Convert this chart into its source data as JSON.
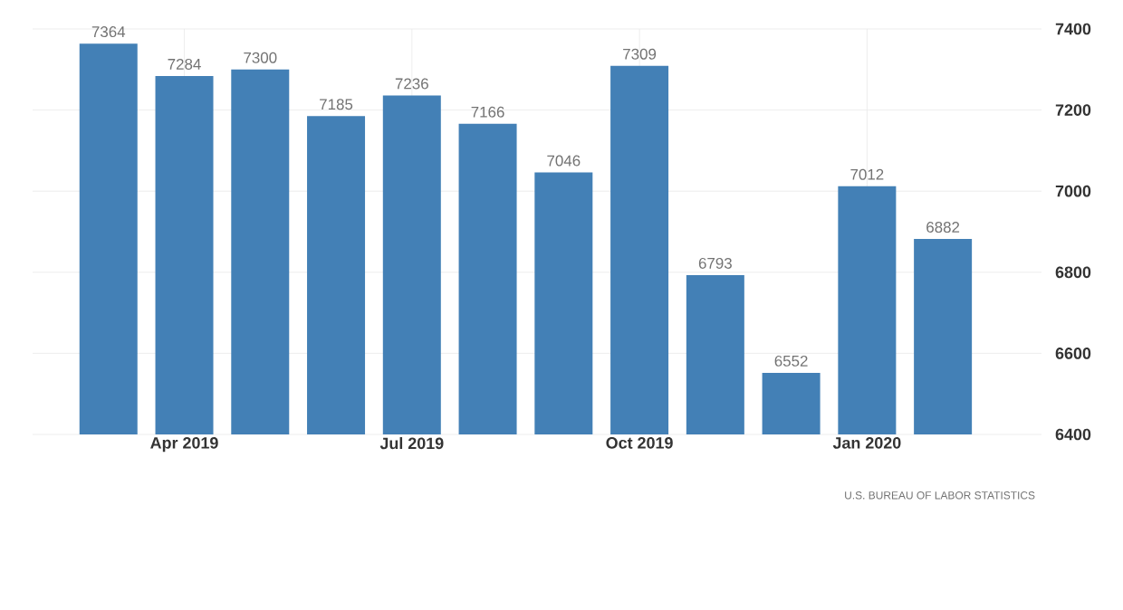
{
  "chart_data": {
    "type": "bar",
    "categories": [
      null,
      "Apr 2019",
      null,
      null,
      "Jul 2019",
      null,
      null,
      "Oct 2019",
      null,
      null,
      "Jan 2020",
      null,
      null
    ],
    "values": [
      7364,
      7284,
      7300,
      7185,
      7236,
      7166,
      7046,
      7309,
      6793,
      6552,
      7012,
      6882,
      null
    ],
    "color": "#4380b6",
    "ylim": [
      6400,
      7400
    ],
    "yticks": [
      6400,
      6600,
      6800,
      7000,
      7200,
      7400
    ],
    "grid": true,
    "data_labels": true,
    "annotations": [
      "U.S. BUREAU OF LABOR STATISTICS"
    ]
  }
}
